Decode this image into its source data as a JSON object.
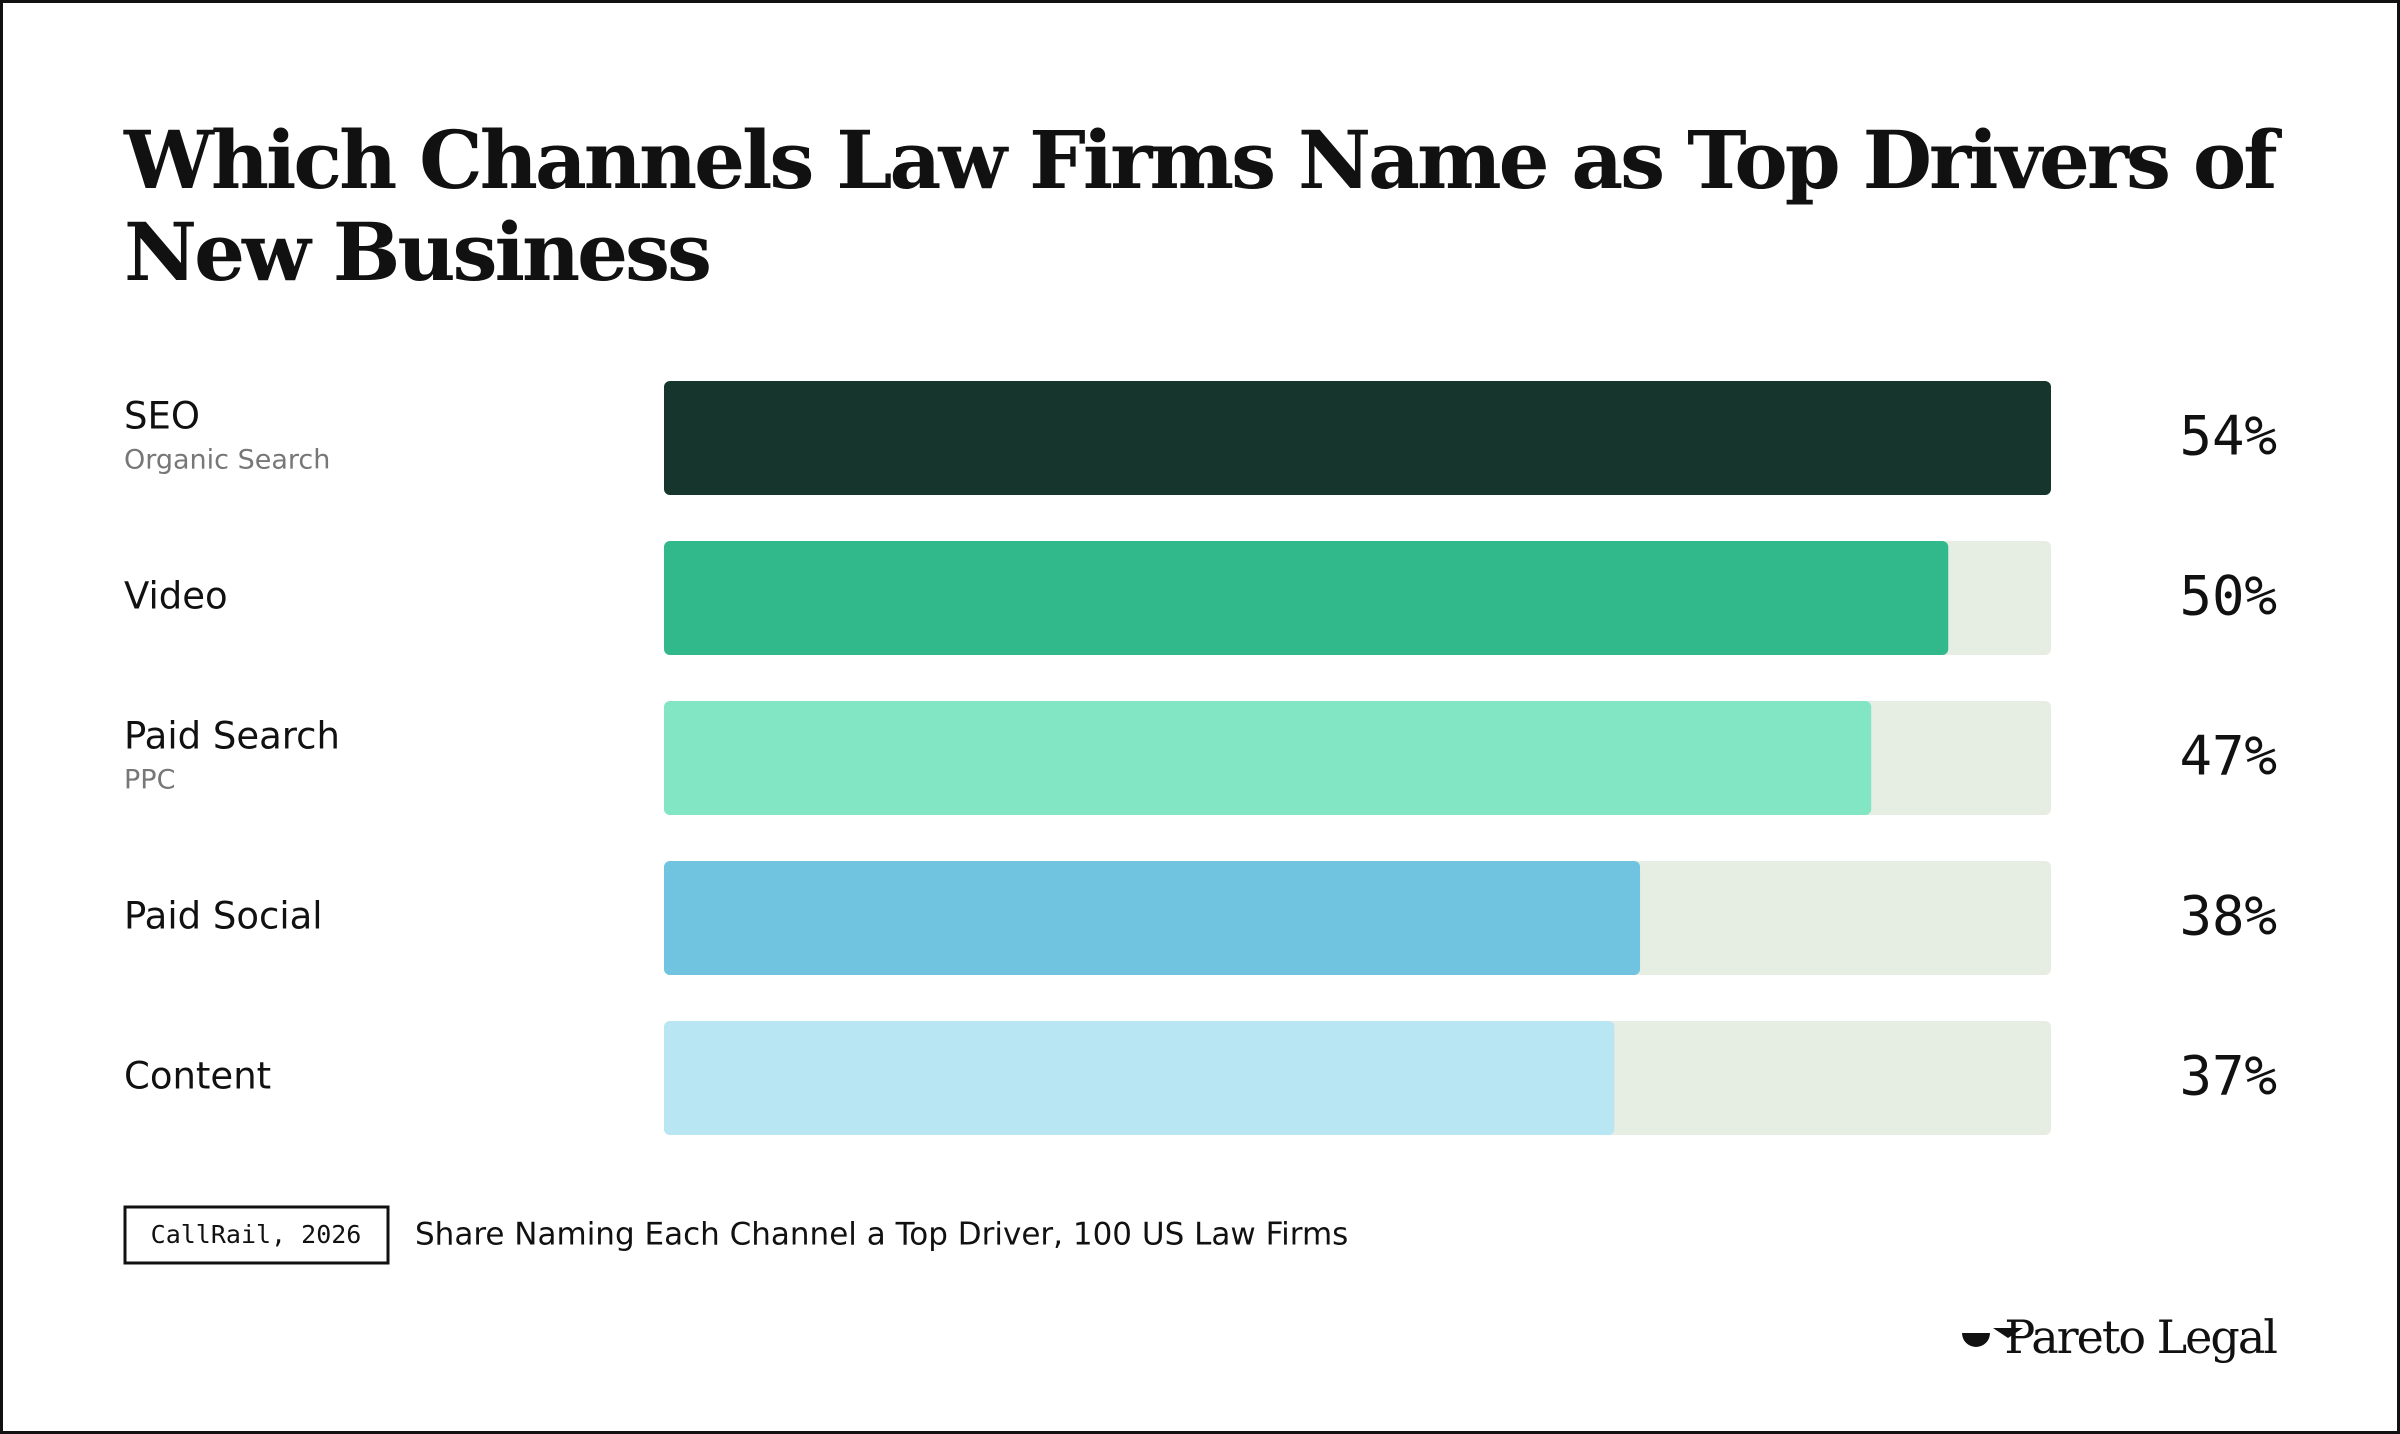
{
  "chart_data": {
    "type": "bar",
    "orientation": "horizontal",
    "title": "Which Channels Law Firms Name as Top Drivers of New Business",
    "categories": [
      "SEO",
      "Video",
      "Paid Search",
      "Paid Social",
      "Content"
    ],
    "sublabels": [
      "Organic Search",
      null,
      "PPC",
      null,
      null
    ],
    "values": [
      54,
      50,
      47,
      38,
      37
    ],
    "value_labels": [
      "54%",
      "50%",
      "47%",
      "38%",
      "37%"
    ],
    "colors": [
      "#16362d",
      "#31b98b",
      "#82e5c3",
      "#70c4df",
      "#b8e6f3"
    ],
    "track_color": "#e6ede3",
    "xlim": [
      0,
      54
    ],
    "source": "CallRail, 2026",
    "caption": "Share Naming Each Channel a Top Driver, 100 US Law Firms",
    "brand": "Pareto Legal"
  }
}
